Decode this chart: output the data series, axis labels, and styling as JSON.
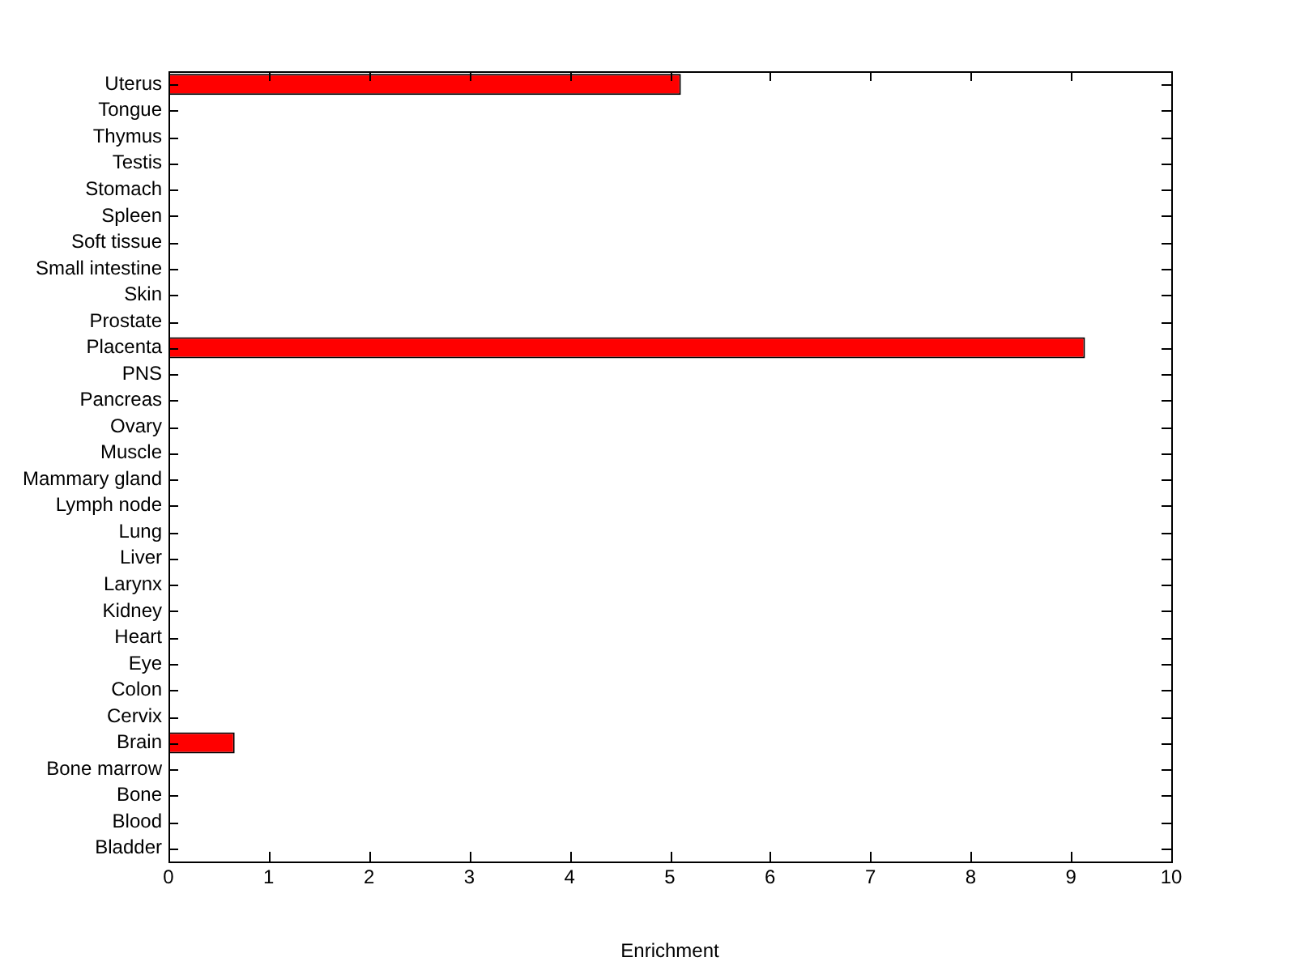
{
  "chart_data": {
    "type": "bar",
    "orientation": "horizontal",
    "xlabel": "Enrichment",
    "categories": [
      "Uterus",
      "Tongue",
      "Thymus",
      "Testis",
      "Stomach",
      "Spleen",
      "Soft tissue",
      "Small intestine",
      "Skin",
      "Prostate",
      "Placenta",
      "PNS",
      "Pancreas",
      "Ovary",
      "Muscle",
      "Mammary gland",
      "Lymph node",
      "Lung",
      "Liver",
      "Larynx",
      "Kidney",
      "Heart",
      "Eye",
      "Colon",
      "Cervix",
      "Brain",
      "Bone marrow",
      "Bone",
      "Blood",
      "Bladder"
    ],
    "values": [
      5.11,
      0,
      0,
      0,
      0,
      0,
      0,
      0,
      0,
      0,
      9.14,
      0,
      0,
      0,
      0,
      0,
      0,
      0,
      0,
      0,
      0,
      0,
      0,
      0,
      0,
      0.66,
      0,
      0,
      0,
      0
    ],
    "color": "#ff0000",
    "xlim": [
      0,
      10
    ],
    "xticks": [
      0,
      1,
      2,
      3,
      4,
      5,
      6,
      7,
      8,
      9,
      10
    ],
    "grid": false,
    "legend": false
  }
}
